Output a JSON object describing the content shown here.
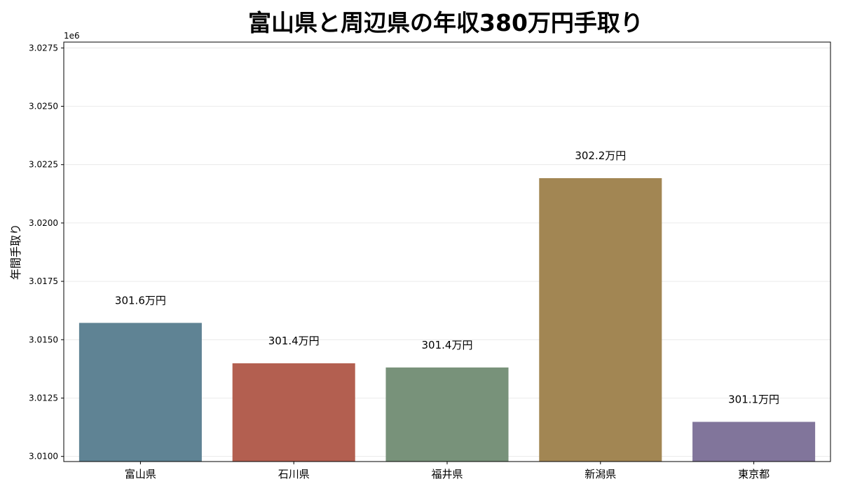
{
  "chart_data": {
    "type": "bar",
    "title": "富山県と周辺県の年収380万円手取り",
    "xlabel": "",
    "ylabel": "年間手取り",
    "y_offset_label": "1e6",
    "ylim": [
      3.00978,
      3.02775
    ],
    "y_ticks": [
      "3.0100",
      "3.0125",
      "3.0150",
      "3.0175",
      "3.0200",
      "3.0225",
      "3.0250",
      "3.0275"
    ],
    "y_tick_values": [
      3.01,
      3.0125,
      3.015,
      3.0175,
      3.02,
      3.0225,
      3.025,
      3.0275
    ],
    "grid": true,
    "categories": [
      "富山県",
      "石川県",
      "福井県",
      "新潟県",
      "東京都"
    ],
    "values": [
      3.01572,
      3.01399,
      3.01381,
      3.02192,
      3.01148
    ],
    "data_labels": [
      "301.6万円",
      "301.4万円",
      "301.4万円",
      "302.2万円",
      "301.1万円"
    ],
    "colors": [
      "#5f8394",
      "#b35f50",
      "#78927a",
      "#a28653",
      "#81759b"
    ]
  }
}
